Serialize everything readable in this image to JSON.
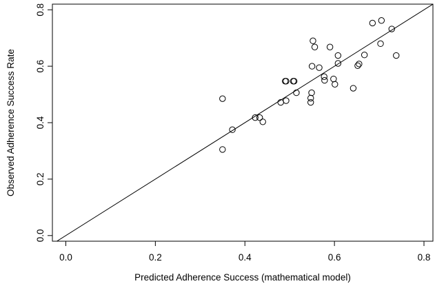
{
  "chart_data": {
    "type": "scatter",
    "xlabel": "Predicted Adherence Success (mathematical model)",
    "ylabel": "Observed Adherence Success Rate",
    "xlim": [
      -0.03,
      0.82
    ],
    "ylim": [
      -0.02,
      0.82
    ],
    "x_ticks": [
      {
        "value": 0.0,
        "label": "0.0"
      },
      {
        "value": 0.2,
        "label": "0.2"
      },
      {
        "value": 0.4,
        "label": "0.4"
      },
      {
        "value": 0.6,
        "label": "0.6"
      },
      {
        "value": 0.8,
        "label": "0.8"
      }
    ],
    "y_ticks": [
      {
        "value": 0.0,
        "label": "0.0"
      },
      {
        "value": 0.2,
        "label": "0.2"
      },
      {
        "value": 0.4,
        "label": "0.4"
      },
      {
        "value": 0.6,
        "label": "0.6"
      },
      {
        "value": 0.8,
        "label": "0.8"
      }
    ],
    "reference_line": {
      "intercept": 0,
      "slope": 1
    },
    "marker": "open-circle",
    "grid": false,
    "colors": {
      "points": "#000000",
      "line": "#000000",
      "background": "#ffffff"
    },
    "points": [
      {
        "x": 0.35,
        "y": 0.485
      },
      {
        "x": 0.35,
        "y": 0.305
      },
      {
        "x": 0.372,
        "y": 0.375
      },
      {
        "x": 0.423,
        "y": 0.418
      },
      {
        "x": 0.433,
        "y": 0.418
      },
      {
        "x": 0.44,
        "y": 0.403
      },
      {
        "x": 0.48,
        "y": 0.472
      },
      {
        "x": 0.49,
        "y": 0.547
      },
      {
        "x": 0.492,
        "y": 0.547
      },
      {
        "x": 0.492,
        "y": 0.478
      },
      {
        "x": 0.508,
        "y": 0.547
      },
      {
        "x": 0.51,
        "y": 0.547
      },
      {
        "x": 0.515,
        "y": 0.506
      },
      {
        "x": 0.547,
        "y": 0.472
      },
      {
        "x": 0.547,
        "y": 0.487
      },
      {
        "x": 0.549,
        "y": 0.506
      },
      {
        "x": 0.55,
        "y": 0.6
      },
      {
        "x": 0.552,
        "y": 0.69
      },
      {
        "x": 0.556,
        "y": 0.668
      },
      {
        "x": 0.566,
        "y": 0.595
      },
      {
        "x": 0.577,
        "y": 0.563
      },
      {
        "x": 0.578,
        "y": 0.55
      },
      {
        "x": 0.59,
        "y": 0.668
      },
      {
        "x": 0.598,
        "y": 0.555
      },
      {
        "x": 0.601,
        "y": 0.536
      },
      {
        "x": 0.608,
        "y": 0.638
      },
      {
        "x": 0.608,
        "y": 0.61
      },
      {
        "x": 0.642,
        "y": 0.522
      },
      {
        "x": 0.652,
        "y": 0.602
      },
      {
        "x": 0.655,
        "y": 0.608
      },
      {
        "x": 0.667,
        "y": 0.64
      },
      {
        "x": 0.685,
        "y": 0.753
      },
      {
        "x": 0.703,
        "y": 0.68
      },
      {
        "x": 0.705,
        "y": 0.762
      },
      {
        "x": 0.728,
        "y": 0.732
      },
      {
        "x": 0.738,
        "y": 0.638
      }
    ]
  }
}
